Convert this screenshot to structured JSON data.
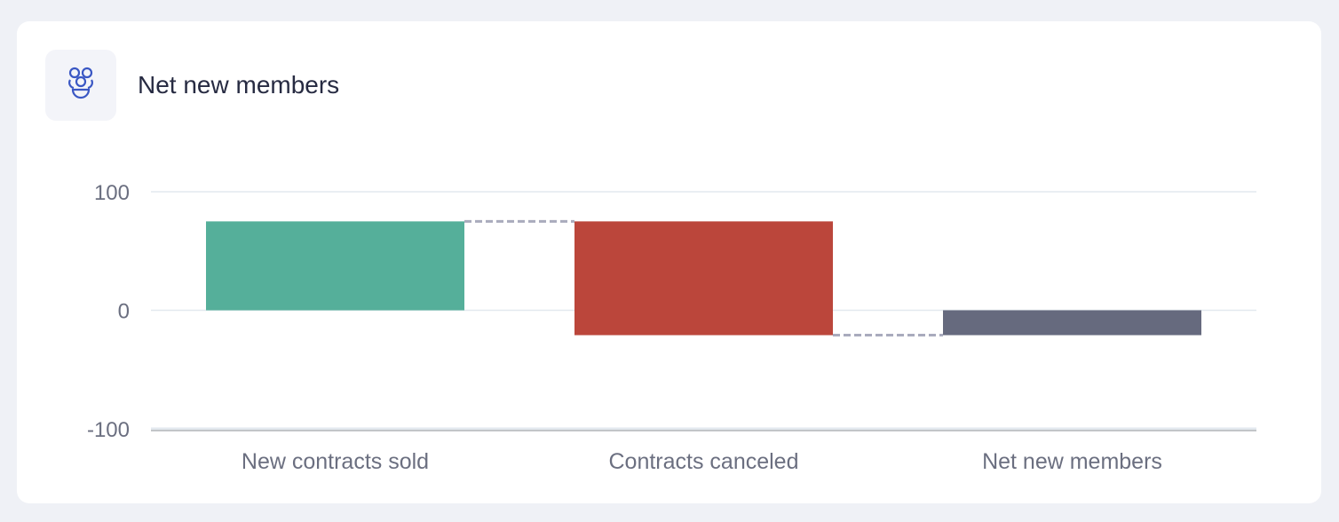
{
  "card": {
    "title": "Net new members",
    "icon": "people-group-icon"
  },
  "chart_data": {
    "type": "waterfall",
    "title": "Net new members",
    "categories": [
      "New contracts sold",
      "Contracts canceled",
      "Net new members"
    ],
    "values": [
      75,
      -96,
      -21
    ],
    "kinds": [
      "increase",
      "decrease",
      "total"
    ],
    "colors": {
      "increase": "#55af9a",
      "decrease": "#bb463b",
      "total": "#666a7e",
      "connector": "#a9abbd",
      "grid": "#e3e9ef"
    },
    "ylim": [
      -100,
      100
    ],
    "yticks": [
      100,
      0,
      -100
    ],
    "ytick_labels": [
      "100",
      "0",
      "-100"
    ],
    "grid": true,
    "xlabel": "",
    "ylabel": ""
  }
}
